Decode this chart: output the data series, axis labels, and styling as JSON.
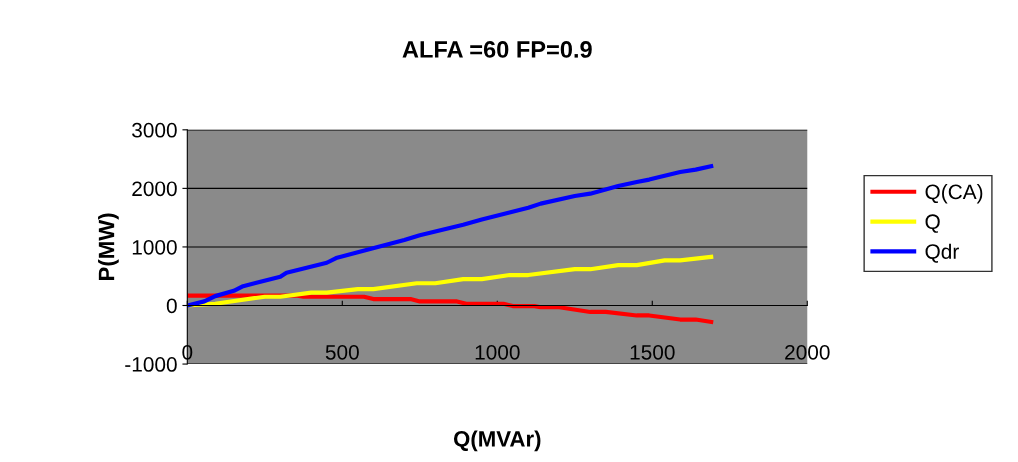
{
  "chart_data": {
    "type": "line",
    "title": "ALFA =60 FP=0.9",
    "xlabel": "Q(MVAr)",
    "ylabel": "P(MW)",
    "xlim": [
      0,
      2000
    ],
    "xticks": [
      0,
      500,
      1000,
      1500,
      2000
    ],
    "ylim": [
      -1000,
      3000
    ],
    "yticks": [
      -1000,
      0,
      1000,
      2000,
      3000
    ],
    "grid": "y",
    "legend": "right",
    "marker": "none",
    "line_style": "solid",
    "series": [
      {
        "name": "Q(CA)",
        "color": "#ff0000",
        "x": [
          0,
          350,
          375,
          570,
          600,
          720,
          750,
          870,
          900,
          1020,
          1050,
          1120,
          1140,
          1200,
          1300,
          1350,
          1450,
          1490,
          1590,
          1640,
          1690
        ],
        "values": [
          170,
          170,
          150,
          150,
          110,
          110,
          70,
          70,
          30,
          30,
          -10,
          -10,
          -30,
          -30,
          -110,
          -110,
          -170,
          -170,
          -240,
          -240,
          -280
        ]
      },
      {
        "name": "Q",
        "color": "#ffff00",
        "x": [
          0,
          90,
          250,
          300,
          400,
          450,
          550,
          600,
          740,
          800,
          890,
          950,
          1040,
          1100,
          1250,
          1300,
          1390,
          1450,
          1540,
          1590,
          1690
        ],
        "values": [
          0,
          30,
          150,
          150,
          220,
          220,
          280,
          280,
          380,
          380,
          450,
          450,
          520,
          520,
          620,
          620,
          690,
          690,
          770,
          770,
          830
        ]
      },
      {
        "name": "Qdr",
        "color": "#0000ff",
        "x": [
          0,
          55,
          90,
          150,
          180,
          300,
          320,
          450,
          480,
          550,
          700,
          750,
          890,
          950,
          1100,
          1140,
          1250,
          1300,
          1390,
          1450,
          1490,
          1590,
          1640,
          1690
        ],
        "values": [
          0,
          70,
          160,
          250,
          330,
          490,
          560,
          730,
          810,
          910,
          1120,
          1200,
          1380,
          1470,
          1670,
          1740,
          1870,
          1910,
          2040,
          2110,
          2150,
          2280,
          2320,
          2380
        ]
      }
    ]
  }
}
